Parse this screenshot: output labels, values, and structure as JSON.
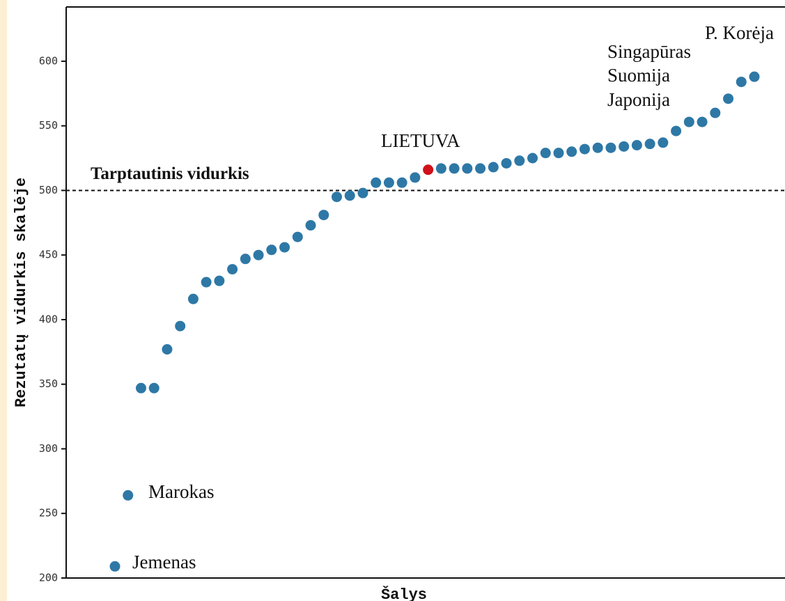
{
  "chart_data": {
    "type": "scatter",
    "y_label": "Rezutatų vidurkis skalėje",
    "x_label": "Šalys",
    "categories": [
      null,
      null,
      null,
      null,
      null,
      null,
      null,
      null,
      null,
      null,
      null,
      null,
      null,
      null,
      null,
      null,
      null,
      null,
      null,
      null,
      null,
      null,
      null,
      null,
      null,
      null,
      null,
      null,
      null,
      null,
      null,
      null,
      null,
      null,
      null,
      null,
      null,
      null,
      null,
      null,
      null,
      null,
      null,
      null,
      null,
      null,
      null,
      null,
      null,
      null
    ],
    "values": [
      209,
      264,
      347,
      347,
      377,
      395,
      416,
      429,
      430,
      439,
      447,
      450,
      454,
      456,
      464,
      473,
      481,
      495,
      496,
      498,
      506,
      506,
      506,
      510,
      516,
      517,
      517,
      517,
      517,
      518,
      521,
      523,
      525,
      529,
      529,
      530,
      532,
      533,
      533,
      534,
      535,
      536,
      537,
      546,
      553,
      553,
      560,
      571,
      584,
      588
    ],
    "color": "#2e78a6",
    "highlight": {
      "label": "LIETUVA",
      "index": 24,
      "color": "#d0101a"
    },
    "reference_line": {
      "label": "Tarptautinis vidurkis",
      "value": 500
    },
    "annotations": [
      "Jemenas",
      "Marokas",
      "Singapūras",
      "Suomija",
      "Japonija",
      "P. Korėja"
    ],
    "ylim": [
      200,
      642
    ],
    "yticks": [
      200,
      250,
      300,
      350,
      400,
      450,
      500,
      550,
      600
    ]
  }
}
